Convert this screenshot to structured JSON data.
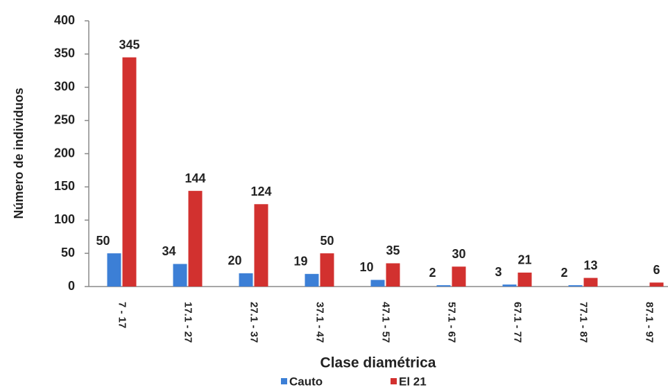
{
  "chart_data": {
    "type": "bar",
    "x_label": "Clase diamétrica",
    "y_label": "Número de individuos",
    "categories": [
      "7 - 17",
      "17.1 - 27",
      "27.1 - 37",
      "37.1 - 47",
      "47.1 - 57",
      "57.1 - 67",
      "67.1 - 77",
      "77.1 - 87",
      "87.1 - 97"
    ],
    "series": [
      {
        "name": "Cauto",
        "color": "#3c7fd6",
        "values": [
          50,
          34,
          20,
          19,
          10,
          2,
          3,
          2,
          null
        ]
      },
      {
        "name": "El 21",
        "color": "#d2312f",
        "values": [
          345,
          144,
          124,
          50,
          35,
          30,
          21,
          13,
          6
        ]
      }
    ],
    "ylim": [
      0,
      400
    ],
    "yticks": [
      0,
      50,
      100,
      150,
      200,
      250,
      300,
      350,
      400
    ],
    "grid": false,
    "legend": "bottom"
  }
}
